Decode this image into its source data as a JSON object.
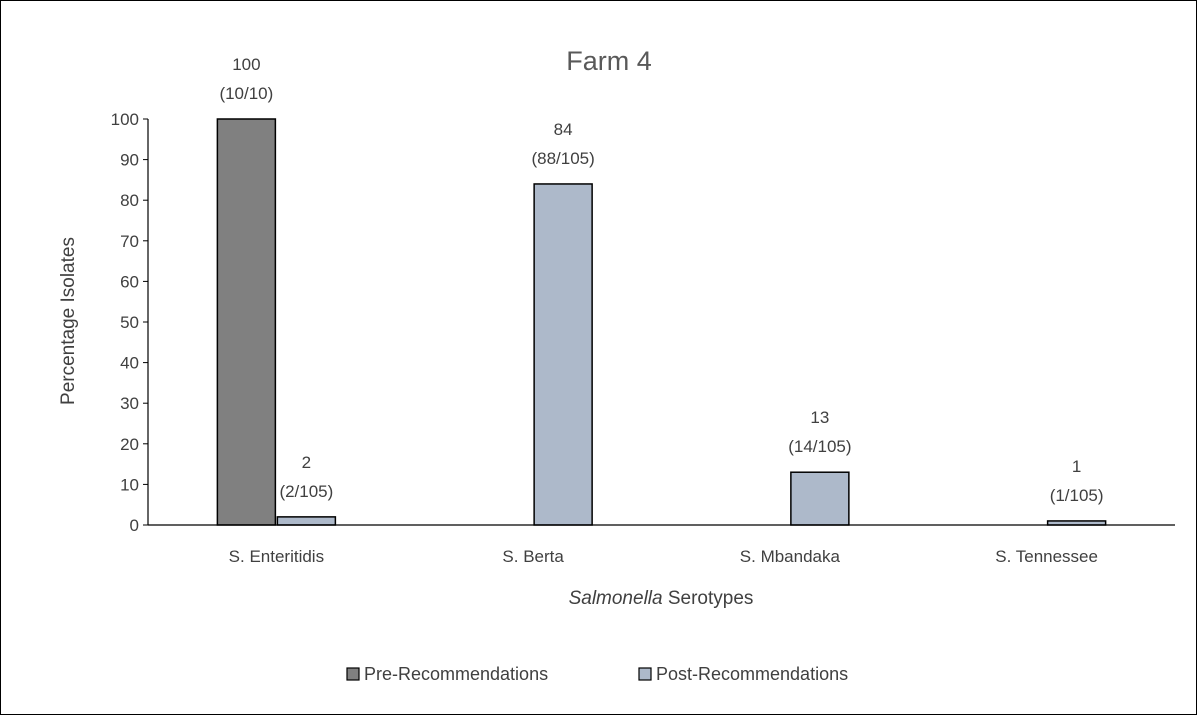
{
  "chart_data": {
    "type": "bar",
    "title": "Farm 4",
    "xlabel_italic": "Salmonella",
    "xlabel_rest": " Serotypes",
    "ylabel": "Percentage Isolates",
    "ylim": [
      0,
      100
    ],
    "yticks": [
      0,
      10,
      20,
      30,
      40,
      50,
      60,
      70,
      80,
      90,
      100
    ],
    "categories": [
      "S. Enteritidis",
      "S. Berta",
      "S. Mbandaka",
      "S. Tennessee"
    ],
    "legend_position": "bottom",
    "grid": false,
    "series": [
      {
        "name": "Pre-Recommendations",
        "color": "#808080",
        "values": [
          100,
          null,
          null,
          null
        ],
        "labels": [
          [
            "100",
            "(10/10)"
          ],
          null,
          null,
          null
        ]
      },
      {
        "name": "Post-Recommendations",
        "color": "#adb9ca",
        "values": [
          2,
          84,
          13,
          1
        ],
        "labels": [
          [
            "2",
            "(2/105)"
          ],
          [
            "84",
            "(88/105)"
          ],
          [
            "13",
            "(14/105)"
          ],
          [
            "1",
            "(1/105)"
          ]
        ]
      }
    ]
  }
}
